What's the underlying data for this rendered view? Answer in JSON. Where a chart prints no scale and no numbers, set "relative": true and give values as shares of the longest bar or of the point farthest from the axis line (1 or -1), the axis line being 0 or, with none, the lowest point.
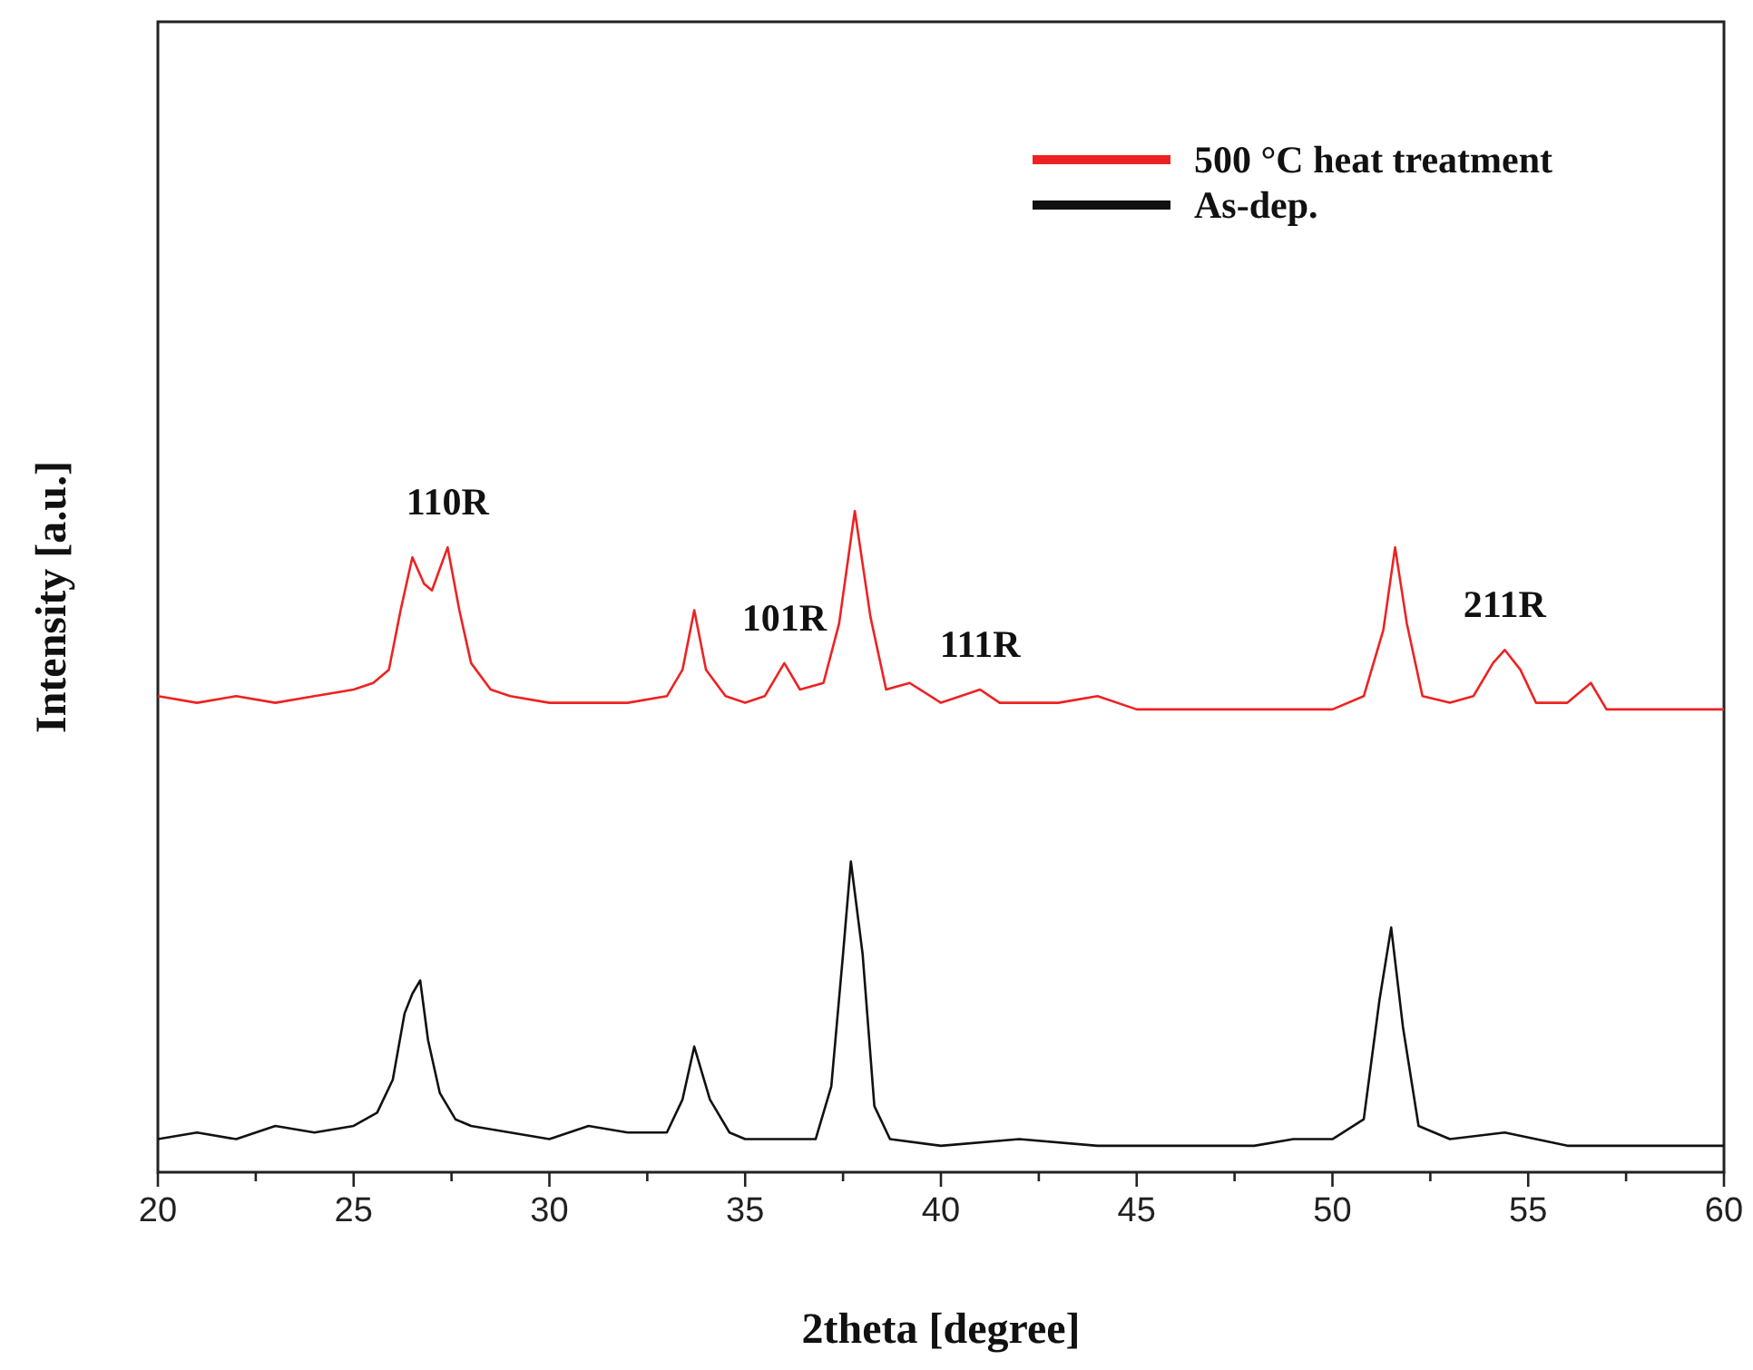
{
  "chart_data": {
    "type": "line",
    "relative": true,
    "xlabel": "2theta [degree]",
    "ylabel": "Intensity [a.u.]",
    "xlim": [
      20,
      60
    ],
    "xticks": [
      20,
      {
        "value": 22.5,
        "label": null
      },
      25,
      {
        "value": 27.5,
        "label": null
      },
      30,
      {
        "value": 32.5,
        "label": null
      },
      35,
      {
        "value": 37.5,
        "label": null
      },
      40,
      {
        "value": 42.5,
        "label": null
      },
      45,
      {
        "value": 47.5,
        "label": null
      },
      50,
      {
        "value": 52.5,
        "label": null
      },
      55,
      {
        "value": 57.5,
        "label": null
      },
      60
    ],
    "grid": false,
    "legend": "top right",
    "tick_labels": "x",
    "marker": "none",
    "line_style": "solid",
    "annotations": [
      {
        "text": "110R",
        "x": 27.4,
        "y": 0.945
      },
      {
        "text": "101R",
        "x": 36.0,
        "y": 0.77
      },
      {
        "text": "111R",
        "x": 41,
        "y": 0.73
      },
      {
        "text": "211R",
        "x": 54.4,
        "y": 0.79
      }
    ],
    "series": [
      {
        "name": "500 °C heat treatment",
        "color": "#ee2222",
        "x": [
          20,
          21,
          22,
          23,
          24,
          25,
          25.5,
          25.9,
          26.2,
          26.5,
          26.8,
          27.0,
          27.4,
          27.7,
          28.0,
          28.5,
          29,
          30,
          31,
          32,
          33,
          33.4,
          33.7,
          34.0,
          34.5,
          35,
          35.5,
          36.0,
          36.4,
          37.0,
          37.4,
          37.8,
          38.2,
          38.6,
          39.2,
          40,
          41,
          41.5,
          42,
          43,
          44,
          45,
          46,
          47,
          48,
          49,
          50,
          50.8,
          51.3,
          51.6,
          51.9,
          52.3,
          53,
          53.6,
          54.1,
          54.4,
          54.8,
          55.2,
          56,
          56.6,
          57,
          58,
          59,
          60
        ],
        "values": [
          0.72,
          0.71,
          0.72,
          0.71,
          0.72,
          0.73,
          0.74,
          0.76,
          0.85,
          0.93,
          0.89,
          0.88,
          0.945,
          0.85,
          0.77,
          0.73,
          0.72,
          0.71,
          0.71,
          0.71,
          0.72,
          0.76,
          0.85,
          0.76,
          0.72,
          0.71,
          0.72,
          0.77,
          0.73,
          0.74,
          0.83,
          1.0,
          0.84,
          0.73,
          0.74,
          0.71,
          0.73,
          0.71,
          0.71,
          0.71,
          0.72,
          0.7,
          0.7,
          0.7,
          0.7,
          0.7,
          0.7,
          0.72,
          0.82,
          0.945,
          0.83,
          0.72,
          0.71,
          0.72,
          0.77,
          0.79,
          0.76,
          0.71,
          0.71,
          0.74,
          0.7,
          0.7,
          0.7,
          0.7
        ]
      },
      {
        "name": "As-dep.",
        "color": "#111111",
        "x": [
          20,
          21,
          22,
          23,
          24,
          25,
          25.6,
          26.0,
          26.3,
          26.5,
          26.7,
          26.9,
          27.2,
          27.6,
          28,
          29,
          30,
          31,
          32,
          33,
          33.4,
          33.7,
          34.1,
          34.6,
          35,
          36,
          36.8,
          37.2,
          37.5,
          37.7,
          38.0,
          38.3,
          38.7,
          40,
          42,
          44,
          46,
          48,
          49,
          50,
          50.8,
          51.2,
          51.5,
          51.8,
          52.2,
          53,
          54.4,
          56,
          58,
          60
        ],
        "values": [
          0.05,
          0.06,
          0.05,
          0.07,
          0.06,
          0.07,
          0.09,
          0.14,
          0.24,
          0.27,
          0.29,
          0.2,
          0.12,
          0.08,
          0.07,
          0.06,
          0.05,
          0.07,
          0.06,
          0.06,
          0.11,
          0.19,
          0.11,
          0.06,
          0.05,
          0.05,
          0.05,
          0.13,
          0.33,
          0.47,
          0.33,
          0.1,
          0.05,
          0.04,
          0.05,
          0.04,
          0.04,
          0.04,
          0.05,
          0.05,
          0.08,
          0.26,
          0.37,
          0.22,
          0.07,
          0.05,
          0.06,
          0.04,
          0.04,
          0.04
        ]
      }
    ]
  }
}
